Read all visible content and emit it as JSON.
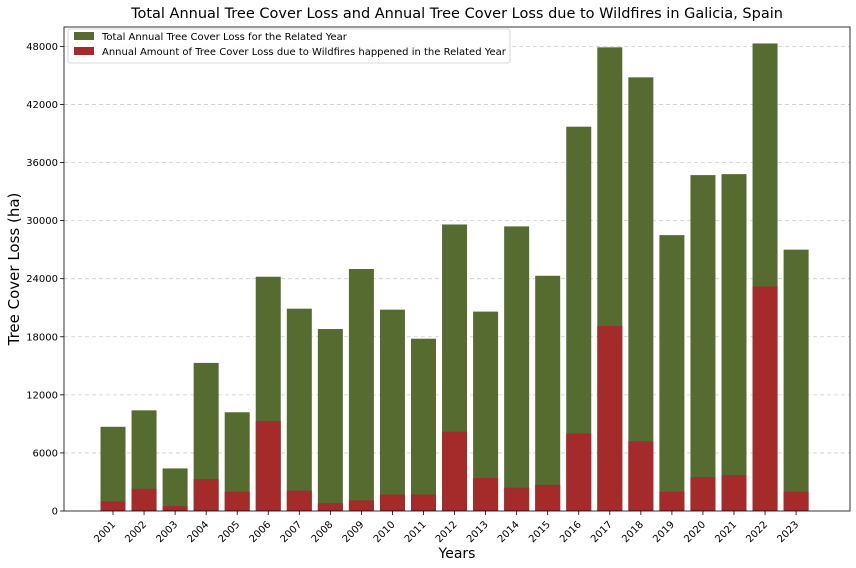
{
  "chart_data": {
    "type": "bar",
    "stacked": false,
    "overlay": true,
    "title": "Total Annual Tree Cover Loss and Annual Tree Cover Loss due to Wildfires in Galicia, Spain",
    "xlabel": "Years",
    "ylabel": "Tree Cover Loss (ha)",
    "ylim": [
      0,
      50000
    ],
    "yticks": [
      0,
      6000,
      12000,
      18000,
      24000,
      30000,
      36000,
      42000,
      48000
    ],
    "grid": "y-dashed",
    "legend_position": "top-left",
    "categories": [
      "2001",
      "2002",
      "2003",
      "2004",
      "2005",
      "2006",
      "2007",
      "2008",
      "2009",
      "2010",
      "2011",
      "2012",
      "2013",
      "2014",
      "2015",
      "2016",
      "2017",
      "2018",
      "2019",
      "2020",
      "2021",
      "2022",
      "2023"
    ],
    "series": [
      {
        "name": "Total Annual Tree Cover Loss for the Related Year",
        "color": "#556b2f",
        "values": [
          8700,
          10400,
          4400,
          15300,
          10200,
          24200,
          20900,
          18800,
          25000,
          20800,
          17800,
          29600,
          20600,
          29400,
          24300,
          39700,
          47900,
          44800,
          28500,
          34700,
          34800,
          48300,
          27000
        ]
      },
      {
        "name": "Annual Amount of Tree Cover Loss due to Wildfires happened in the Related Year",
        "color": "#a52a2a",
        "values": [
          1000,
          2300,
          500,
          3300,
          2000,
          9300,
          2100,
          800,
          1100,
          1700,
          1700,
          8200,
          3400,
          2400,
          2700,
          8000,
          19100,
          7200,
          2000,
          3500,
          3700,
          23200,
          2000
        ]
      }
    ]
  }
}
